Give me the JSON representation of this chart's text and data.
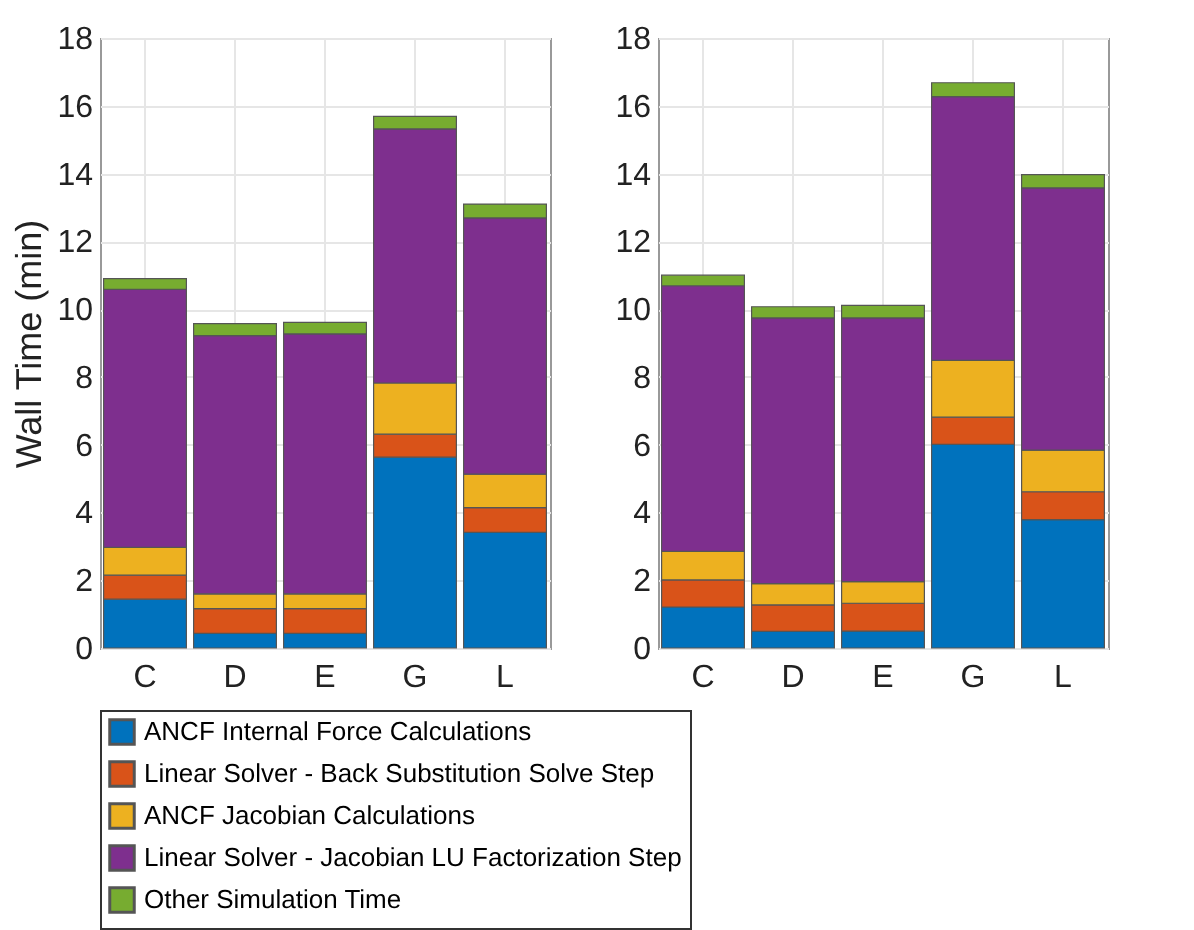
{
  "chart_data": [
    {
      "type": "bar",
      "stacked": true,
      "ylabel": "Wall Time (min)",
      "categories": [
        "C",
        "D",
        "E",
        "G",
        "L"
      ],
      "ylim": [
        0,
        18
      ],
      "yticks": [
        0,
        2,
        4,
        6,
        8,
        10,
        12,
        14,
        16,
        18
      ],
      "grid": true,
      "legend": "bottom",
      "series": [
        {
          "name": "ANCF Internal Force Calculations",
          "color": "#0072bd",
          "values": [
            1.44,
            0.43,
            0.43,
            5.63,
            3.41
          ]
        },
        {
          "name": "Linear Solver - Back Substitution Solve Step",
          "color": "#d95319",
          "values": [
            0.71,
            0.73,
            0.73,
            0.68,
            0.73
          ]
        },
        {
          "name": "ANCF Jacobian Calculations",
          "color": "#edb120",
          "values": [
            0.82,
            0.44,
            0.44,
            1.51,
            0.99
          ]
        },
        {
          "name": "Linear Solver - Jacobian LU Factorization Step",
          "color": "#7e2f8e",
          "values": [
            7.61,
            7.62,
            7.67,
            7.5,
            7.56
          ]
        },
        {
          "name": "Other Simulation Time",
          "color": "#77ac30",
          "values": [
            0.32,
            0.35,
            0.34,
            0.37,
            0.41
          ]
        }
      ]
    },
    {
      "type": "bar",
      "stacked": true,
      "categories": [
        "C",
        "D",
        "E",
        "G",
        "L"
      ],
      "ylim": [
        0,
        18
      ],
      "yticks": [
        0,
        2,
        4,
        6,
        8,
        10,
        12,
        14,
        16,
        18
      ],
      "grid": true,
      "legend": "bottom",
      "series": [
        {
          "name": "ANCF Internal Force Calculations",
          "color": "#0072bd",
          "values": [
            1.21,
            0.49,
            0.5,
            6.01,
            3.79
          ]
        },
        {
          "name": "Linear Solver - Back Substitution Solve Step",
          "color": "#d95319",
          "values": [
            0.8,
            0.78,
            0.82,
            0.8,
            0.82
          ]
        },
        {
          "name": "ANCF Jacobian Calculations",
          "color": "#edb120",
          "values": [
            0.84,
            0.63,
            0.64,
            1.68,
            1.23
          ]
        },
        {
          "name": "Linear Solver - Jacobian LU Factorization Step",
          "color": "#7e2f8e",
          "values": [
            7.84,
            7.84,
            7.78,
            7.78,
            7.74
          ]
        },
        {
          "name": "Other Simulation Time",
          "color": "#77ac30",
          "values": [
            0.31,
            0.33,
            0.37,
            0.41,
            0.39
          ]
        }
      ]
    }
  ]
}
